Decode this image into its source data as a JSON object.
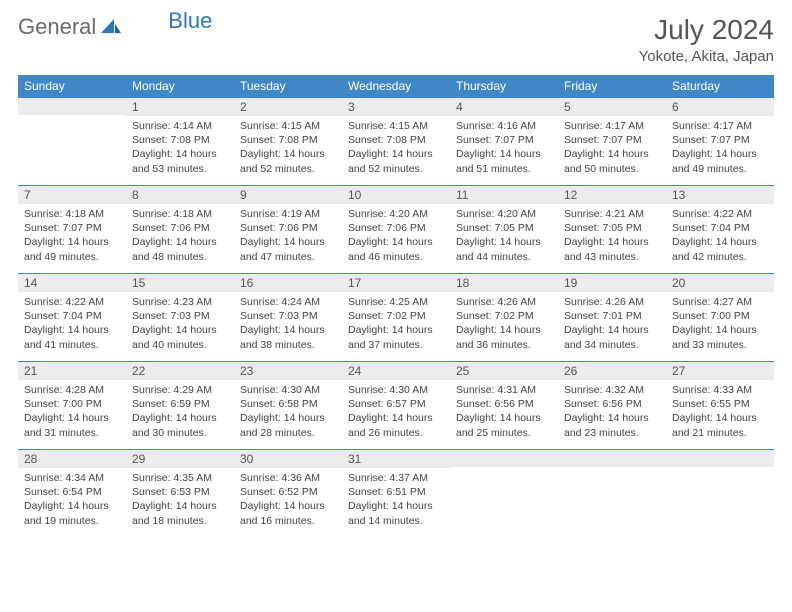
{
  "logo": {
    "text1": "General",
    "text2": "Blue"
  },
  "title": "July 2024",
  "location": "Yokote, Akita, Japan",
  "colors": {
    "header_bg": "#3f87c6",
    "header_fg": "#ffffff",
    "daynum_bg": "#ececec",
    "row_border": "#3f87c6",
    "logo_gray": "#6b6b6b",
    "logo_blue": "#2a7ab9"
  },
  "weekdays": [
    "Sunday",
    "Monday",
    "Tuesday",
    "Wednesday",
    "Thursday",
    "Friday",
    "Saturday"
  ],
  "weeks": [
    [
      {
        "n": "",
        "sr": "",
        "ss": "",
        "dl": ""
      },
      {
        "n": "1",
        "sr": "Sunrise: 4:14 AM",
        "ss": "Sunset: 7:08 PM",
        "dl": "Daylight: 14 hours and 53 minutes."
      },
      {
        "n": "2",
        "sr": "Sunrise: 4:15 AM",
        "ss": "Sunset: 7:08 PM",
        "dl": "Daylight: 14 hours and 52 minutes."
      },
      {
        "n": "3",
        "sr": "Sunrise: 4:15 AM",
        "ss": "Sunset: 7:08 PM",
        "dl": "Daylight: 14 hours and 52 minutes."
      },
      {
        "n": "4",
        "sr": "Sunrise: 4:16 AM",
        "ss": "Sunset: 7:07 PM",
        "dl": "Daylight: 14 hours and 51 minutes."
      },
      {
        "n": "5",
        "sr": "Sunrise: 4:17 AM",
        "ss": "Sunset: 7:07 PM",
        "dl": "Daylight: 14 hours and 50 minutes."
      },
      {
        "n": "6",
        "sr": "Sunrise: 4:17 AM",
        "ss": "Sunset: 7:07 PM",
        "dl": "Daylight: 14 hours and 49 minutes."
      }
    ],
    [
      {
        "n": "7",
        "sr": "Sunrise: 4:18 AM",
        "ss": "Sunset: 7:07 PM",
        "dl": "Daylight: 14 hours and 49 minutes."
      },
      {
        "n": "8",
        "sr": "Sunrise: 4:18 AM",
        "ss": "Sunset: 7:06 PM",
        "dl": "Daylight: 14 hours and 48 minutes."
      },
      {
        "n": "9",
        "sr": "Sunrise: 4:19 AM",
        "ss": "Sunset: 7:06 PM",
        "dl": "Daylight: 14 hours and 47 minutes."
      },
      {
        "n": "10",
        "sr": "Sunrise: 4:20 AM",
        "ss": "Sunset: 7:06 PM",
        "dl": "Daylight: 14 hours and 46 minutes."
      },
      {
        "n": "11",
        "sr": "Sunrise: 4:20 AM",
        "ss": "Sunset: 7:05 PM",
        "dl": "Daylight: 14 hours and 44 minutes."
      },
      {
        "n": "12",
        "sr": "Sunrise: 4:21 AM",
        "ss": "Sunset: 7:05 PM",
        "dl": "Daylight: 14 hours and 43 minutes."
      },
      {
        "n": "13",
        "sr": "Sunrise: 4:22 AM",
        "ss": "Sunset: 7:04 PM",
        "dl": "Daylight: 14 hours and 42 minutes."
      }
    ],
    [
      {
        "n": "14",
        "sr": "Sunrise: 4:22 AM",
        "ss": "Sunset: 7:04 PM",
        "dl": "Daylight: 14 hours and 41 minutes."
      },
      {
        "n": "15",
        "sr": "Sunrise: 4:23 AM",
        "ss": "Sunset: 7:03 PM",
        "dl": "Daylight: 14 hours and 40 minutes."
      },
      {
        "n": "16",
        "sr": "Sunrise: 4:24 AM",
        "ss": "Sunset: 7:03 PM",
        "dl": "Daylight: 14 hours and 38 minutes."
      },
      {
        "n": "17",
        "sr": "Sunrise: 4:25 AM",
        "ss": "Sunset: 7:02 PM",
        "dl": "Daylight: 14 hours and 37 minutes."
      },
      {
        "n": "18",
        "sr": "Sunrise: 4:26 AM",
        "ss": "Sunset: 7:02 PM",
        "dl": "Daylight: 14 hours and 36 minutes."
      },
      {
        "n": "19",
        "sr": "Sunrise: 4:26 AM",
        "ss": "Sunset: 7:01 PM",
        "dl": "Daylight: 14 hours and 34 minutes."
      },
      {
        "n": "20",
        "sr": "Sunrise: 4:27 AM",
        "ss": "Sunset: 7:00 PM",
        "dl": "Daylight: 14 hours and 33 minutes."
      }
    ],
    [
      {
        "n": "21",
        "sr": "Sunrise: 4:28 AM",
        "ss": "Sunset: 7:00 PM",
        "dl": "Daylight: 14 hours and 31 minutes."
      },
      {
        "n": "22",
        "sr": "Sunrise: 4:29 AM",
        "ss": "Sunset: 6:59 PM",
        "dl": "Daylight: 14 hours and 30 minutes."
      },
      {
        "n": "23",
        "sr": "Sunrise: 4:30 AM",
        "ss": "Sunset: 6:58 PM",
        "dl": "Daylight: 14 hours and 28 minutes."
      },
      {
        "n": "24",
        "sr": "Sunrise: 4:30 AM",
        "ss": "Sunset: 6:57 PM",
        "dl": "Daylight: 14 hours and 26 minutes."
      },
      {
        "n": "25",
        "sr": "Sunrise: 4:31 AM",
        "ss": "Sunset: 6:56 PM",
        "dl": "Daylight: 14 hours and 25 minutes."
      },
      {
        "n": "26",
        "sr": "Sunrise: 4:32 AM",
        "ss": "Sunset: 6:56 PM",
        "dl": "Daylight: 14 hours and 23 minutes."
      },
      {
        "n": "27",
        "sr": "Sunrise: 4:33 AM",
        "ss": "Sunset: 6:55 PM",
        "dl": "Daylight: 14 hours and 21 minutes."
      }
    ],
    [
      {
        "n": "28",
        "sr": "Sunrise: 4:34 AM",
        "ss": "Sunset: 6:54 PM",
        "dl": "Daylight: 14 hours and 19 minutes."
      },
      {
        "n": "29",
        "sr": "Sunrise: 4:35 AM",
        "ss": "Sunset: 6:53 PM",
        "dl": "Daylight: 14 hours and 18 minutes."
      },
      {
        "n": "30",
        "sr": "Sunrise: 4:36 AM",
        "ss": "Sunset: 6:52 PM",
        "dl": "Daylight: 14 hours and 16 minutes."
      },
      {
        "n": "31",
        "sr": "Sunrise: 4:37 AM",
        "ss": "Sunset: 6:51 PM",
        "dl": "Daylight: 14 hours and 14 minutes."
      },
      {
        "n": "",
        "sr": "",
        "ss": "",
        "dl": ""
      },
      {
        "n": "",
        "sr": "",
        "ss": "",
        "dl": ""
      },
      {
        "n": "",
        "sr": "",
        "ss": "",
        "dl": ""
      }
    ]
  ]
}
